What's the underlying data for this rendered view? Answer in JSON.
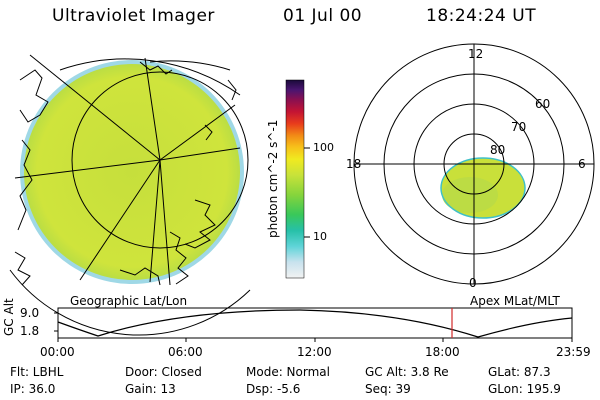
{
  "header": {
    "title": "Ultraviolet Imager",
    "date": "01 Jul 00",
    "time": "18:24:24 UT"
  },
  "colorbar": {
    "unit": "photon cm^-2 s^-1",
    "tick_100": "100",
    "tick_10": "10"
  },
  "polar_plot": {
    "labels": {
      "top": "12",
      "left": "18",
      "right": "6",
      "bottom": "0"
    },
    "lat_labels": [
      "60",
      "70",
      "80"
    ]
  },
  "panels": {
    "geo_label": "Geographic Lat/Lon",
    "apex_label": "Apex MLat/MLT"
  },
  "altitude_plot": {
    "ylabel": "GC Alt",
    "yticks": [
      "9.0",
      "1.8"
    ],
    "xticks": [
      "00:00",
      "06:00",
      "12:00",
      "18:00",
      "23:59"
    ],
    "cursor_time": "18:24"
  },
  "info": {
    "filter": "Flt: LBHL",
    "ip": "IP: 36.0",
    "door": "Door: Closed",
    "gain": "Gain: 13",
    "mode": "Mode: Normal",
    "dsp": "Dsp:    -5.6",
    "gc_alt": "GC Alt: 3.8 Re",
    "seq": "Seq: 39",
    "glat": "GLat:  87.3",
    "glon": "GLon: 195.9"
  },
  "colors": {
    "image_fill": "#cbe33a",
    "cursor": "#d32a2a"
  }
}
